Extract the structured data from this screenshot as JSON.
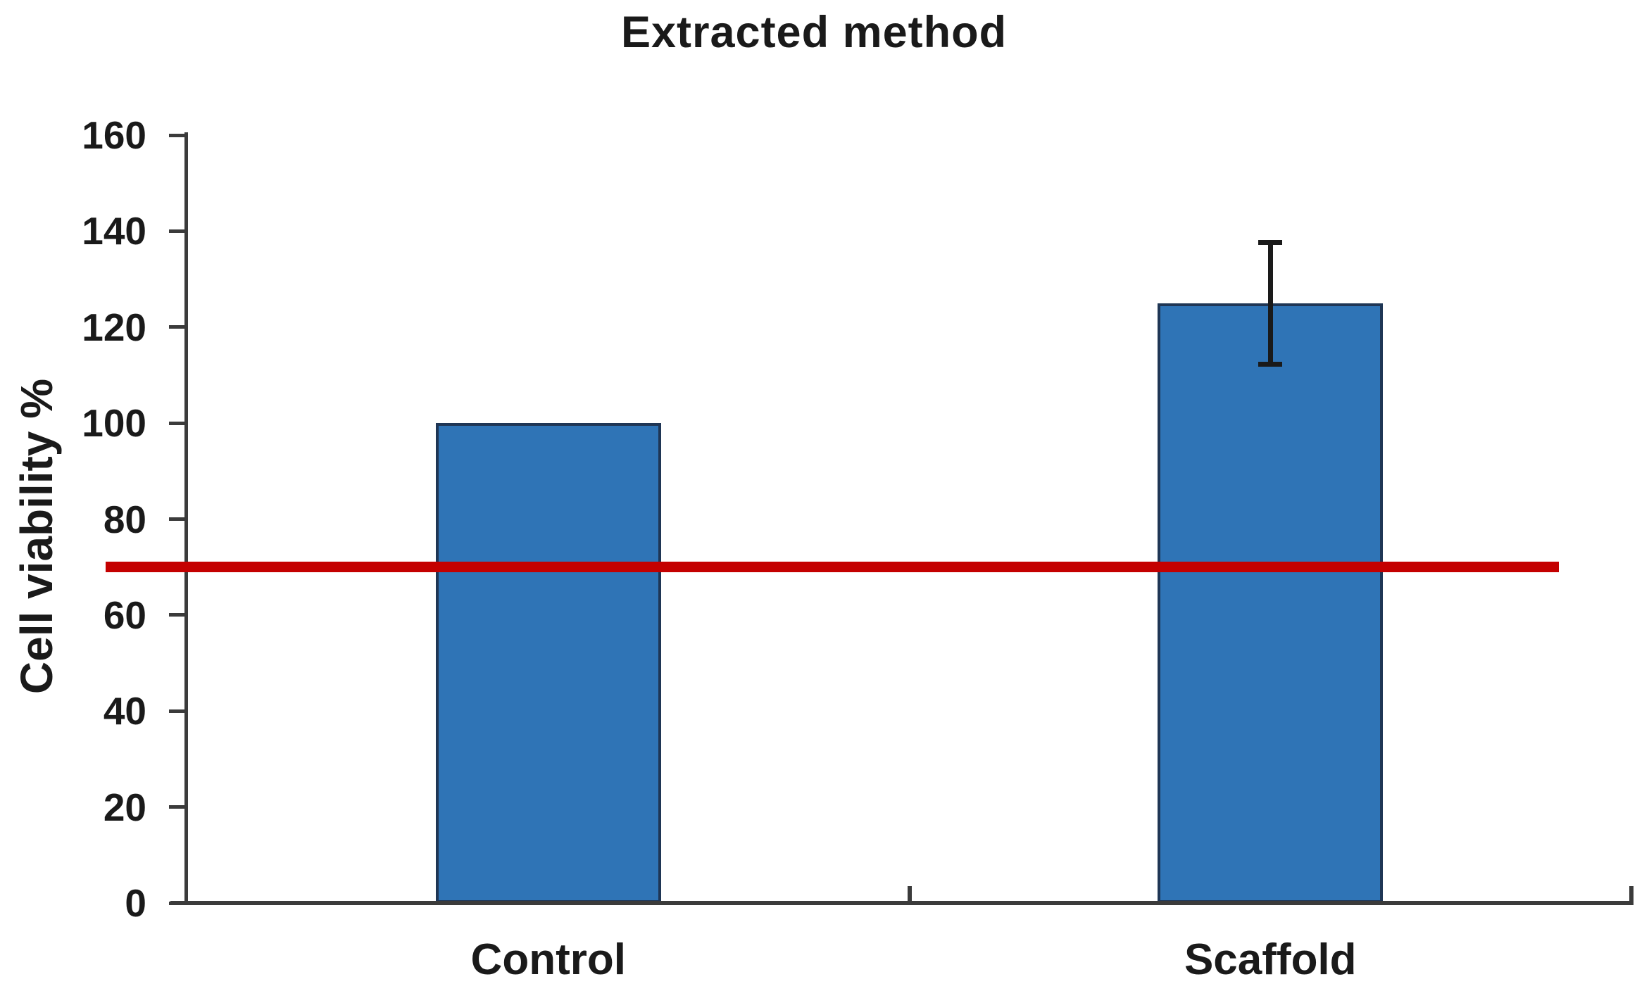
{
  "title": "Extracted method",
  "chart_data": {
    "type": "bar",
    "title": "Extracted method",
    "categories": [
      "Control",
      "Scaffold"
    ],
    "values": [
      100,
      125
    ],
    "errors": [
      0,
      12.7
    ],
    "xlabel": "",
    "ylabel": "Cell viability %",
    "ylim": [
      0,
      160
    ],
    "yticks": [
      0,
      20,
      40,
      60,
      80,
      100,
      120,
      140,
      160
    ],
    "grid": false,
    "legend": "none",
    "reference_line": {
      "value": 70,
      "label": ""
    }
  },
  "colors": {
    "bar_fill": "#2F74B6",
    "bar_border": "#1F3655",
    "reference_line": "#C40000",
    "axis": "#3B3B3B",
    "error_bar": "#1A1A1A",
    "text": "#1A1A1A"
  }
}
